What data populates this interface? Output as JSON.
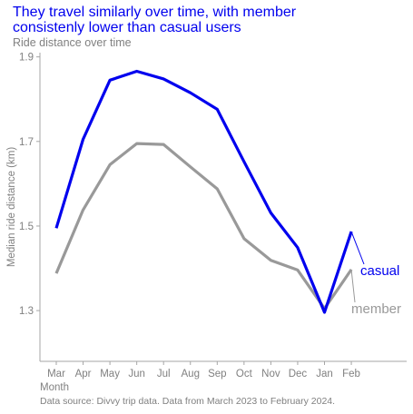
{
  "colors": {
    "title": "#0000ee",
    "text_gray": "#808080",
    "axis_gray": "#a6a6a6",
    "casual": "#0000ee",
    "member": "#999999",
    "background": "#ffffff"
  },
  "chart_data": {
    "type": "line",
    "title_lines": [
      "They travel similarly over time, with member",
      "consistenly lower than casual users"
    ],
    "subtitle": "Ride distance over time",
    "xlabel": "Month",
    "ylabel": "Median ride distance (km)",
    "caption": "Data source: Divvy trip data. Data from March 2023 to February 2024.",
    "categories": [
      "Mar",
      "Apr",
      "May",
      "Jun",
      "Jul",
      "Aug",
      "Sep",
      "Oct",
      "Nov",
      "Dec",
      "Jan",
      "Feb"
    ],
    "ylim": [
      1.18,
      1.91
    ],
    "yticks": [
      1.3,
      1.5,
      1.7,
      1.9
    ],
    "ytick_labels": [
      "1.3",
      "1.5",
      "1.7",
      "1.9"
    ],
    "grid": false,
    "legend": "direct labels at right end of lines",
    "series": [
      {
        "name": "casual",
        "color": "#0000ee",
        "values": [
          1.495,
          1.705,
          1.845,
          1.866,
          1.848,
          1.815,
          1.776,
          1.652,
          1.531,
          1.449,
          1.296,
          1.487
        ]
      },
      {
        "name": "member",
        "color": "#999999",
        "values": [
          1.388,
          1.538,
          1.645,
          1.695,
          1.693,
          1.64,
          1.588,
          1.47,
          1.419,
          1.396,
          1.305,
          1.397
        ]
      }
    ]
  }
}
